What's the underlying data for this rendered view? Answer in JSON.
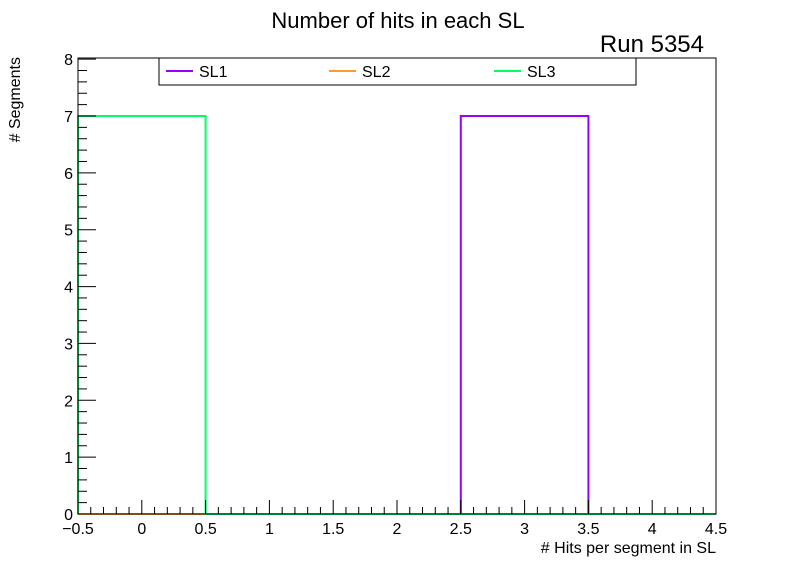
{
  "chart_data": {
    "type": "histogram",
    "title": "Number of hits in each SL",
    "subtitle": "Run 5354",
    "xlabel": "# Hits per segment in SL",
    "ylabel": "# Segments",
    "xlim": [
      -0.5,
      4.5
    ],
    "ylim": [
      0,
      8.02
    ],
    "x_ticks": [
      "-0.5",
      "0",
      "0.5",
      "1",
      "1.5",
      "2",
      "2.5",
      "3",
      "3.5",
      "4",
      "4.5"
    ],
    "y_ticks": [
      "0",
      "1",
      "2",
      "3",
      "4",
      "5",
      "6",
      "7",
      "8"
    ],
    "bin_edges": [
      -0.5,
      0.5,
      1.5,
      2.5,
      3.5,
      4.5
    ],
    "grid": false,
    "legend_position": "top",
    "series": [
      {
        "name": "SL1",
        "color": "#9a00ff",
        "values": [
          0,
          0,
          0,
          7,
          0
        ]
      },
      {
        "name": "SL2",
        "color": "#ff9a33",
        "values": [
          0,
          0,
          0,
          0,
          0
        ]
      },
      {
        "name": "SL3",
        "color": "#00ff66",
        "values": [
          7,
          0,
          0,
          0,
          0
        ]
      }
    ]
  }
}
